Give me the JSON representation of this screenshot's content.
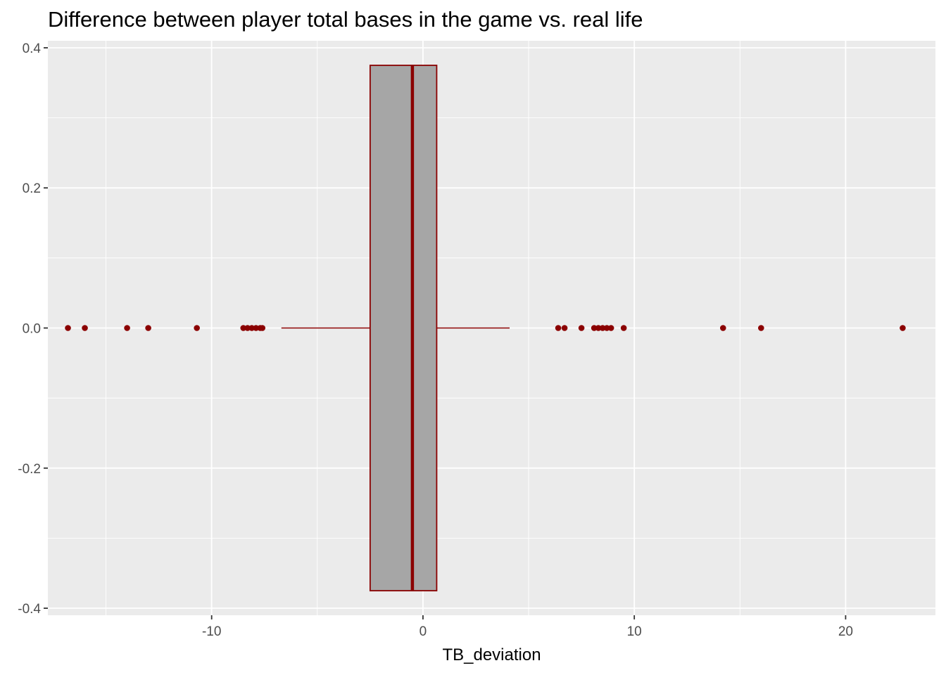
{
  "chart_data": {
    "type": "boxplot",
    "title": "Difference between player total bases in the game vs. real life",
    "xlabel": "TB_deviation",
    "ylabel": "",
    "xlim": [
      -17.75,
      24.25
    ],
    "ylim": [
      -0.41,
      0.41
    ],
    "x_ticks": [
      -10,
      0,
      10,
      20
    ],
    "y_ticks": [
      -0.4,
      -0.2,
      0.0,
      0.2,
      0.4
    ],
    "y_tick_labels": [
      "-0.4",
      "-0.2",
      "0.0",
      "0.2",
      "0.4"
    ],
    "grid": true,
    "box": {
      "y_center": 0.0,
      "half_width": 0.375,
      "q1": -2.5,
      "median": -0.5,
      "q3": 0.65,
      "whisker_low": -6.7,
      "whisker_high": 4.1
    },
    "outliers": [
      -16.8,
      -16.0,
      -14.0,
      -13.0,
      -10.7,
      -8.5,
      -8.3,
      -8.1,
      -7.9,
      -7.7,
      -7.6,
      6.4,
      6.7,
      7.5,
      8.1,
      8.3,
      8.5,
      8.7,
      8.9,
      9.5,
      14.2,
      16.0,
      22.7
    ],
    "colors": {
      "panel_background": "#ebebeb",
      "grid": "#ffffff",
      "box_fill": "#a6a6a6",
      "box_outline": "#8b0000",
      "outlier": "#8b0000"
    }
  }
}
